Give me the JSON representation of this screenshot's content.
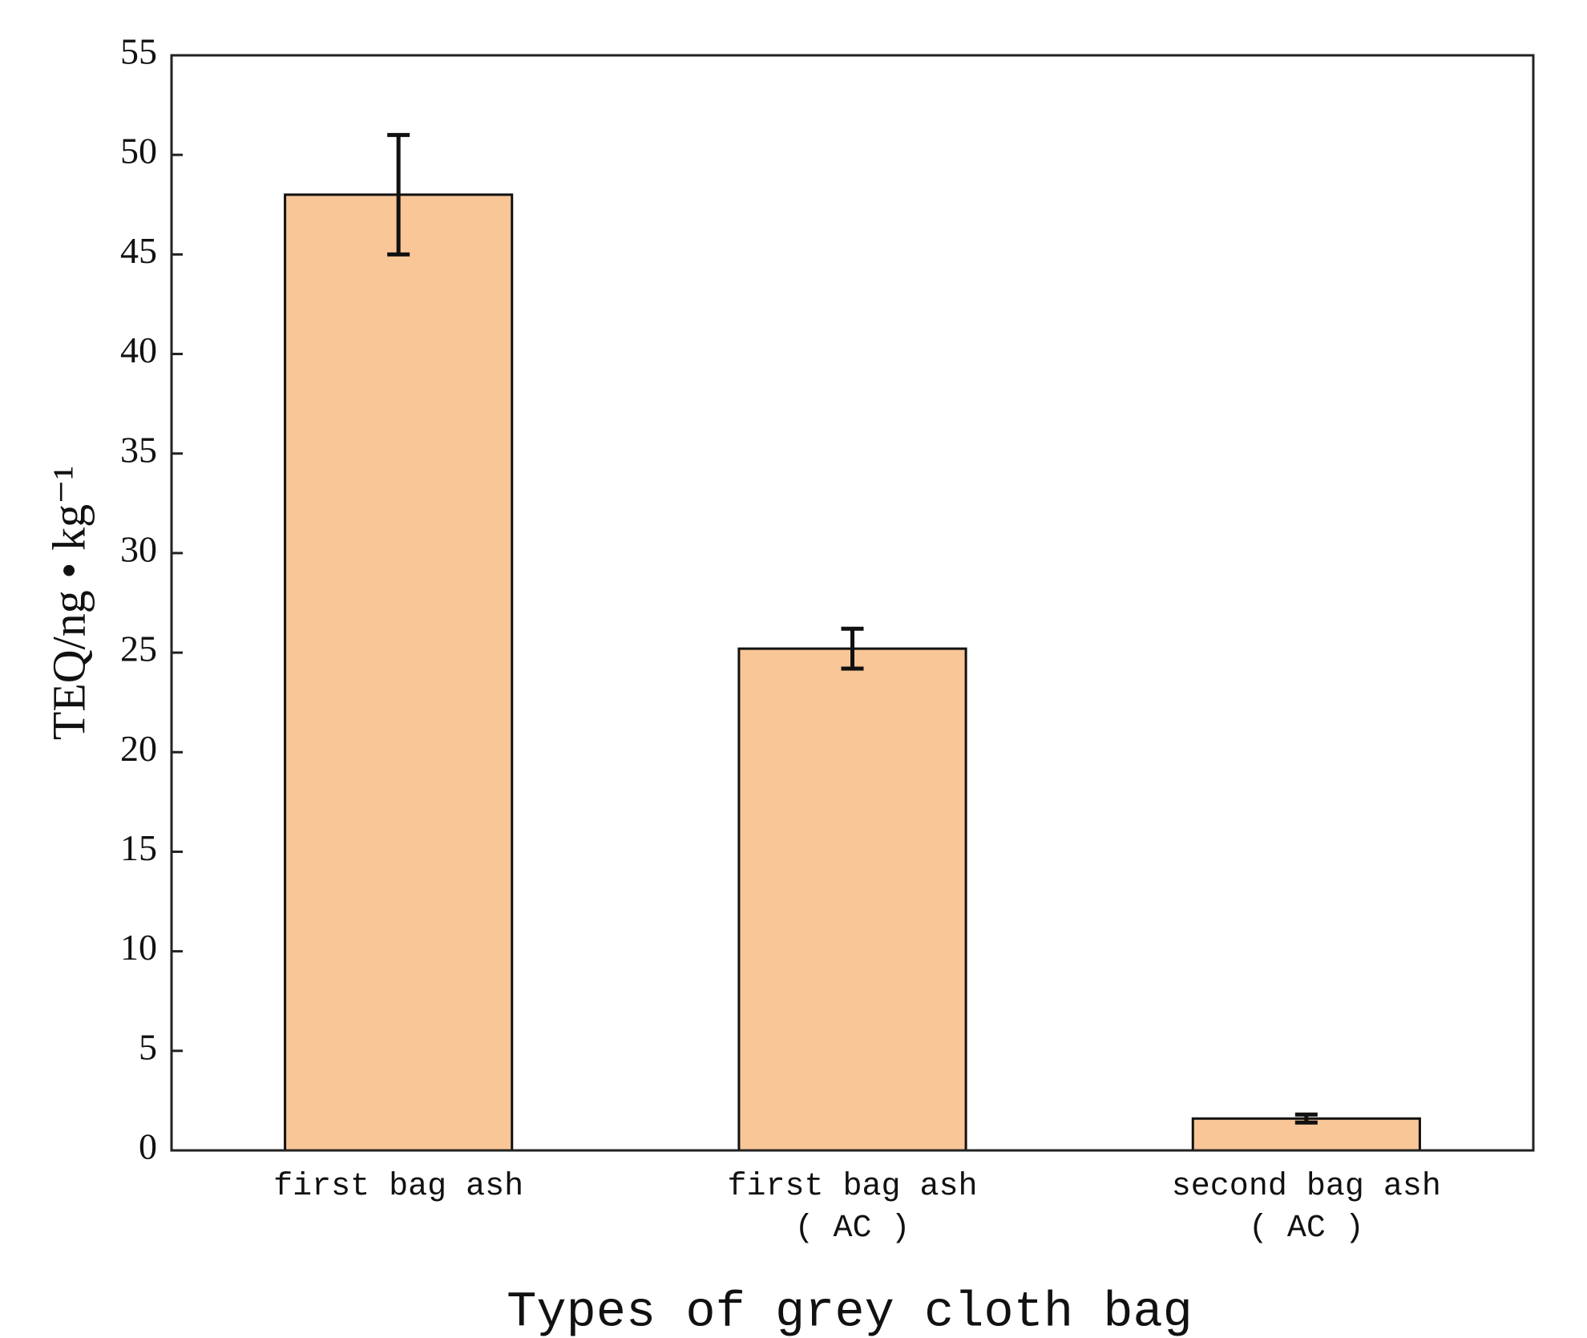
{
  "chart_data": {
    "type": "bar",
    "categories": [
      "first bag ash",
      "first bag ash\n( AC )",
      "second bag ash\n( AC )"
    ],
    "values": [
      48,
      25.2,
      1.6
    ],
    "errors": [
      3,
      1,
      0.2
    ],
    "color": "#f9c697",
    "x_label": "Types of grey cloth bag",
    "y_label": "TEQ/ng • kg⁻¹",
    "ylim": [
      0,
      55
    ],
    "yticks": [
      0,
      5,
      10,
      15,
      20,
      25,
      30,
      35,
      40,
      45,
      50,
      55
    ]
  }
}
